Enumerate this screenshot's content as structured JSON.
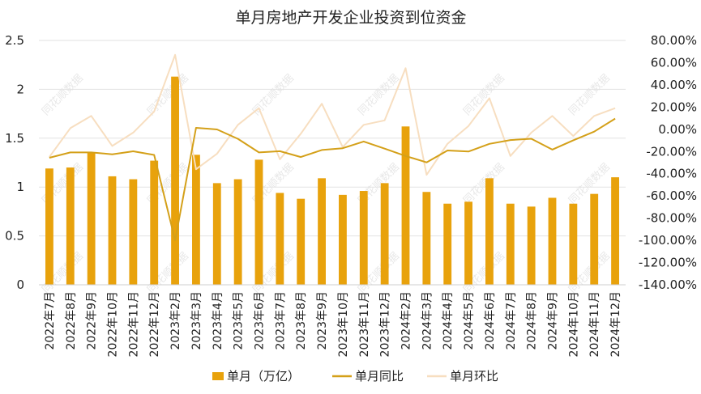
{
  "chart_data": {
    "type": "bar",
    "title": "单月房地产开发企业投资到位资金",
    "categories": [
      "2022年7月",
      "2022年8月",
      "2022年9月",
      "2022年10月",
      "2022年11月",
      "2022年12月",
      "2023年2月",
      "2023年3月",
      "2023年4月",
      "2023年5月",
      "2023年6月",
      "2023年7月",
      "2023年8月",
      "2023年9月",
      "2023年10月",
      "2023年11月",
      "2023年12月",
      "2024年2月",
      "2024年3月",
      "2024年4月",
      "2024年5月",
      "2024年6月",
      "2024年7月",
      "2024年8月",
      "2024年9月",
      "2024年10月",
      "2024年11月",
      "2024年12月"
    ],
    "left_axis": {
      "ylim": [
        0,
        2.5
      ],
      "ticks": [
        "0",
        "0.5",
        "1",
        "1.5",
        "2",
        "2.5"
      ],
      "tick_values": [
        0,
        0.5,
        1,
        1.5,
        2,
        2.5
      ]
    },
    "right_axis": {
      "ylim": [
        -140,
        80
      ],
      "ticks": [
        "-140.00%",
        "-120.00%",
        "-100.00%",
        "-80.00%",
        "-60.00%",
        "-40.00%",
        "-20.00%",
        "0.00%",
        "20.00%",
        "40.00%",
        "60.00%",
        "80.00%"
      ],
      "tick_values": [
        -140,
        -120,
        -100,
        -80,
        -60,
        -40,
        -20,
        0,
        20,
        40,
        60,
        80
      ]
    },
    "series": [
      {
        "name": "单月（万亿）",
        "kind": "bar",
        "axis": "left",
        "color": "#E8A20C",
        "values": [
          1.19,
          1.2,
          1.35,
          1.11,
          1.08,
          1.27,
          2.13,
          1.33,
          1.04,
          1.08,
          1.28,
          0.94,
          0.88,
          1.09,
          0.92,
          0.96,
          1.04,
          1.62,
          0.95,
          0.83,
          0.85,
          1.09,
          0.83,
          0.8,
          0.89,
          0.83,
          0.93,
          1.1
        ]
      },
      {
        "name": "单月同比",
        "kind": "line",
        "axis": "right",
        "color": "#D4A019",
        "values": [
          -25.6,
          -20.8,
          -20.8,
          -22.5,
          -19.8,
          -23.1,
          -100,
          1.3,
          -0.1,
          -8.6,
          -20.8,
          -19.7,
          -25,
          -18.6,
          -17,
          -11,
          -17.4,
          -24,
          -29.8,
          -19.1,
          -20,
          -13.1,
          -9.7,
          -8.5,
          -18.3,
          -9.9,
          -2.1,
          9.6
        ]
      },
      {
        "name": "单月环比",
        "kind": "line",
        "axis": "right",
        "color": "#F7DEC0",
        "values": [
          -25,
          1,
          12,
          -15,
          -3,
          16,
          67,
          -36,
          -22,
          4,
          19,
          -27,
          -4,
          23,
          -16,
          4,
          8,
          55,
          -41,
          -13,
          3,
          28,
          -24,
          -3,
          12,
          -6,
          12,
          19
        ]
      }
    ],
    "legend_position": "bottom",
    "grid": true,
    "watermark_text": "同花顺数据"
  }
}
